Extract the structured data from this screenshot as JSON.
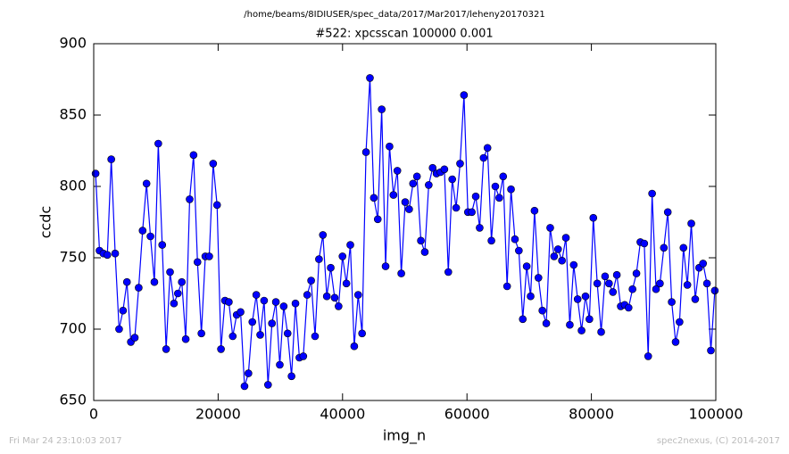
{
  "chart_data": {
    "type": "line",
    "suptitle": "/home/beams/8IDIUSER/spec_data/2017/Mar2017/leheny20170321",
    "title": "#522: xpcsscan 100000 0.001",
    "x_label": "img_n",
    "y_label": "ccdc",
    "footer_left": "Fri Mar 24 23:10:03 2017",
    "footer_right": "spec2nexus, (C) 2014-2017",
    "xlim": [
      0,
      100000
    ],
    "ylim": [
      650,
      900
    ],
    "xticks": [
      0,
      20000,
      40000,
      60000,
      80000,
      100000
    ],
    "yticks": [
      650,
      700,
      750,
      800,
      850,
      900
    ],
    "grid": false,
    "x": [
      300,
      930,
      1560,
      2190,
      2820,
      3450,
      4080,
      4710,
      5340,
      5970,
      6600,
      7230,
      7860,
      8490,
      9120,
      9750,
      10380,
      11010,
      11640,
      12270,
      12900,
      13530,
      14160,
      14790,
      15420,
      16050,
      16680,
      17310,
      17940,
      18570,
      19200,
      19830,
      20460,
      21090,
      21720,
      22350,
      22980,
      23610,
      24240,
      24870,
      25500,
      26130,
      26760,
      27390,
      28020,
      28650,
      29280,
      29910,
      30540,
      31170,
      31800,
      32430,
      33060,
      33690,
      34320,
      34950,
      35580,
      36210,
      36840,
      37470,
      38100,
      38730,
      39360,
      39990,
      40620,
      41250,
      41880,
      42510,
      43140,
      43770,
      44400,
      45030,
      45660,
      46290,
      46920,
      47550,
      48180,
      48810,
      49440,
      50070,
      50700,
      51330,
      51960,
      52590,
      53220,
      53850,
      54480,
      55110,
      55740,
      56370,
      57000,
      57630,
      58260,
      58890,
      59520,
      60150,
      60780,
      61410,
      62040,
      62670,
      63300,
      63930,
      64560,
      65190,
      65820,
      66450,
      67080,
      67710,
      68340,
      68970,
      69600,
      70230,
      70860,
      71490,
      72120,
      72750,
      73380,
      74010,
      74640,
      75270,
      75900,
      76530,
      77160,
      77790,
      78420,
      79050,
      79680,
      80310,
      80940,
      81570,
      82200,
      82830,
      83460,
      84090,
      84720,
      85350,
      85980,
      86610,
      87240,
      87870,
      88500,
      89130,
      89760,
      90390,
      91020,
      91650,
      92280,
      92910,
      93540,
      94170,
      94800,
      95430,
      96060,
      96690,
      97320,
      97950,
      98580,
      99210,
      99840
    ],
    "series": [
      {
        "color": "#0000ff",
        "values": [
          809,
          755,
          753,
          752,
          819,
          753,
          700,
          713,
          733,
          691,
          694,
          729,
          769,
          802,
          765,
          733,
          830,
          759,
          686,
          740,
          718,
          725,
          733,
          693,
          791,
          822,
          747,
          697,
          751,
          751,
          816,
          787,
          686,
          720,
          719,
          695,
          710,
          712,
          660,
          669,
          705,
          724,
          696,
          720,
          661,
          704,
          719,
          675,
          716,
          697,
          667,
          718,
          680,
          681,
          724,
          734,
          695,
          749,
          766,
          723,
          743,
          722,
          716,
          751,
          732,
          759,
          688,
          724,
          697,
          824,
          876,
          792,
          777,
          854,
          744,
          828,
          794,
          811,
          739,
          789,
          784,
          802,
          807,
          762,
          754,
          801,
          813,
          809,
          810,
          812,
          740,
          805,
          785,
          816,
          864,
          782,
          782,
          793,
          771,
          820,
          827,
          762,
          800,
          792,
          807,
          730,
          798,
          763,
          755,
          707,
          744,
          723,
          783,
          736,
          713,
          704,
          771,
          751,
          756,
          748,
          764,
          703,
          745,
          721,
          699,
          723,
          707,
          778,
          732,
          698,
          737,
          732,
          726,
          738,
          716,
          717,
          715,
          728,
          739,
          761,
          760,
          681,
          795,
          728,
          732,
          757,
          782,
          719,
          691,
          705,
          757,
          731,
          774,
          721,
          743,
          746,
          732,
          685,
          727
        ]
      }
    ]
  }
}
